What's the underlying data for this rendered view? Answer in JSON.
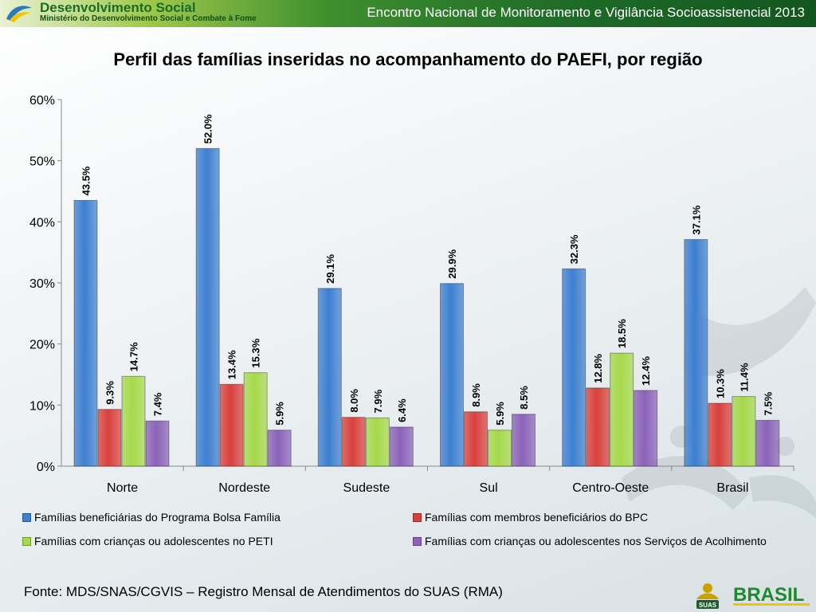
{
  "header": {
    "brand_title": "Desenvolvimento Social",
    "brand_subtitle": "Ministério do Desenvolvimento Social e Combate à Fome",
    "event_title": "Encontro Nacional de Monitoramento e Vigilância Socioassistencial 2013"
  },
  "footer": {
    "source": "Fonte: MDS/SNAS/CGVIS – Registro Mensal de Atendimentos do SUAS (RMA)",
    "suas_label": "SUAS",
    "brasil_label": "BRASIL"
  },
  "colors": {
    "blue": "#3d7fd0",
    "red": "#d9403c",
    "green": "#a6d94a",
    "purple": "#8b62b8"
  },
  "chart_data": {
    "type": "bar",
    "title": "Perfil das famílias inseridas no acompanhamento do PAEFI, por região",
    "xlabel": "",
    "ylabel": "",
    "ylim": [
      0,
      60
    ],
    "yticks": [
      "0%",
      "10%",
      "20%",
      "30%",
      "40%",
      "50%",
      "60%"
    ],
    "categories": [
      "Norte",
      "Nordeste",
      "Sudeste",
      "Sul",
      "Centro-Oeste",
      "Brasil"
    ],
    "series": [
      {
        "name": "Famílias beneficiárias do Programa Bolsa Família",
        "color": "#3d7fd0",
        "values": [
          43.5,
          52.0,
          29.1,
          29.9,
          32.3,
          37.1
        ],
        "labels": [
          "43.5%",
          "52.0%",
          "29.1%",
          "29.9%",
          "32.3%",
          "37.1%"
        ]
      },
      {
        "name": "Famílias com membros beneficiários do BPC",
        "color": "#d9403c",
        "values": [
          9.3,
          13.4,
          8.0,
          8.9,
          12.8,
          10.3
        ],
        "labels": [
          "9.3%",
          "13.4%",
          "8.0%",
          "8.9%",
          "12.8%",
          "10.3%"
        ]
      },
      {
        "name": "Famílias com crianças ou adolescentes no PETI",
        "color": "#a6d94a",
        "values": [
          14.7,
          15.3,
          7.9,
          5.9,
          18.5,
          11.4
        ],
        "labels": [
          "14.7%",
          "15.3%",
          "7.9%",
          "5.9%",
          "18.5%",
          "11.4%"
        ]
      },
      {
        "name": "Famílias com crianças ou adolescentes nos Serviços de Acolhimento",
        "color": "#8b62b8",
        "values": [
          7.4,
          5.9,
          6.4,
          8.5,
          12.4,
          7.5
        ],
        "labels": [
          "7.4%",
          "5.9%",
          "6.4%",
          "8.5%",
          "12.4%",
          "7.5%"
        ]
      }
    ],
    "grid": false,
    "legend": "bottom"
  }
}
